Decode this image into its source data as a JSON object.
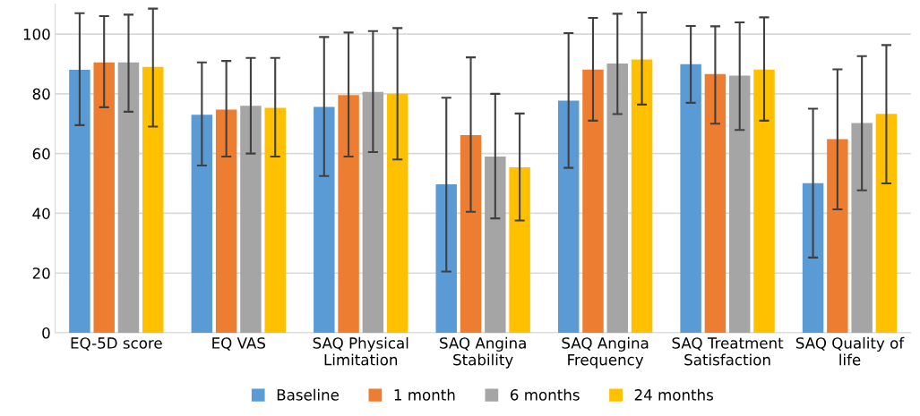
{
  "chart_data": {
    "type": "bar",
    "categories": [
      "EQ-5D score",
      "EQ VAS",
      "SAQ Physical\nLimitation",
      "SAQ Angina\nStability",
      "SAQ Angina\nFrequency",
      "SAQ Treatment\nSatisfaction",
      "SAQ Quality of\nlife"
    ],
    "series": [
      {
        "name": "Baseline",
        "color": "#5b9bd5",
        "values": [
          88,
          73,
          75.6,
          49.7,
          77.7,
          89.9,
          50.1
        ],
        "errors": [
          [
            69.5,
            107
          ],
          [
            56,
            90.5
          ],
          [
            52.5,
            99
          ],
          [
            20.5,
            78.7
          ],
          [
            55.2,
            100.3
          ],
          [
            77,
            102.7
          ],
          [
            25.2,
            75
          ]
        ]
      },
      {
        "name": "1 month",
        "color": "#ed7d31",
        "values": [
          90.5,
          74.7,
          79.6,
          66.2,
          88.1,
          86.6,
          64.8
        ],
        "errors": [
          [
            75.5,
            106
          ],
          [
            59,
            91
          ],
          [
            59,
            100.5
          ],
          [
            40.5,
            92.2
          ],
          [
            71,
            105.4
          ],
          [
            70,
            102.6
          ],
          [
            41.3,
            88.2
          ]
        ]
      },
      {
        "name": "6 months",
        "color": "#a5a5a5",
        "values": [
          90.5,
          76,
          80.6,
          59,
          90.1,
          86.1,
          70.2
        ],
        "errors": [
          [
            74,
            106.5
          ],
          [
            60,
            92
          ],
          [
            60.5,
            101
          ],
          [
            38.3,
            80
          ],
          [
            73.2,
            106.8
          ],
          [
            67.9,
            103.9
          ],
          [
            47.7,
            92.6
          ]
        ]
      },
      {
        "name": "24 months",
        "color": "#ffc000",
        "values": [
          89,
          75.3,
          80,
          55.4,
          91.5,
          88.1,
          73.3
        ],
        "errors": [
          [
            69,
            108.5
          ],
          [
            59,
            92
          ],
          [
            58,
            102
          ],
          [
            37.6,
            73.4
          ],
          [
            76.4,
            107.2
          ],
          [
            71,
            105.6
          ],
          [
            50,
            96.3
          ]
        ]
      }
    ],
    "ylim": [
      0,
      110
    ],
    "yticks": [
      0,
      20,
      40,
      60,
      80,
      100
    ],
    "grid": "y",
    "legend": "bottom"
  }
}
